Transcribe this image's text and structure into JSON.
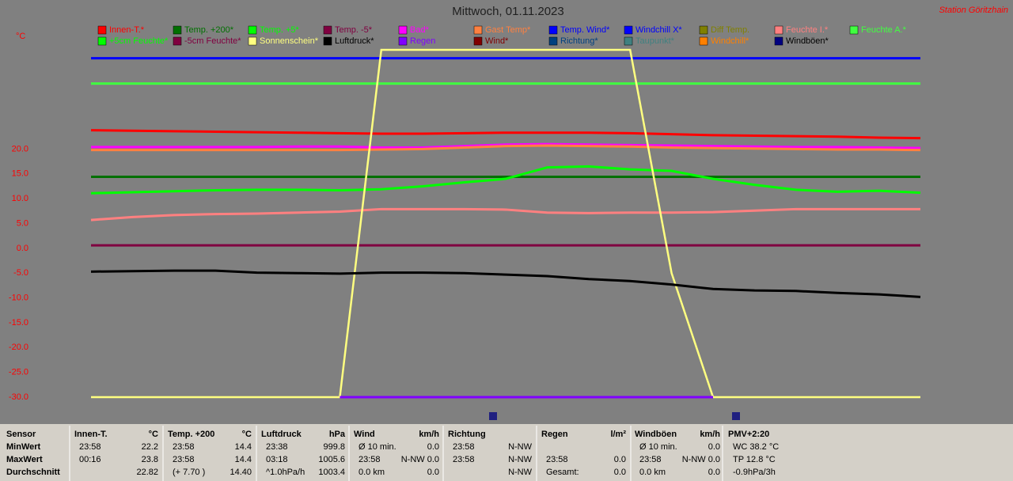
{
  "station": "Station Göritzhain",
  "chart_data": {
    "type": "line",
    "title": "Mittwoch, 01.11.2023",
    "y_unit": "°C",
    "ylim": [
      -30,
      40
    ],
    "yticks": [
      {
        "value": 20,
        "label": "20.0"
      },
      {
        "value": 15,
        "label": "15.0"
      },
      {
        "value": 10,
        "label": "10.0"
      },
      {
        "value": 5,
        "label": "5.0"
      },
      {
        "value": 0,
        "label": "0.0"
      },
      {
        "value": -5,
        "label": "-5.0"
      },
      {
        "value": -10,
        "label": "-10.0"
      },
      {
        "value": -15,
        "label": "-15.0"
      },
      {
        "value": -20,
        "label": "-20.0"
      },
      {
        "value": -25,
        "label": "-25.0"
      },
      {
        "value": -30,
        "label": "-30.0"
      }
    ],
    "categories": [
      null,
      null,
      null,
      null,
      null,
      null,
      null,
      null,
      null,
      null,
      null,
      null,
      null,
      null,
      null,
      null,
      null,
      null,
      null,
      null,
      null
    ],
    "series": [
      {
        "name": "Innen-T.*",
        "color": "#ff0000",
        "values": [
          23.8,
          23.7,
          23.6,
          23.5,
          23.4,
          23.3,
          23.2,
          23.1,
          23.1,
          23.2,
          23.3,
          23.3,
          23.3,
          23.2,
          23.0,
          22.8,
          22.7,
          22.6,
          22.5,
          22.3,
          22.2
        ]
      },
      {
        "name": "Temp. +200*",
        "color": "#007000",
        "values": [
          14.4,
          14.4,
          14.4,
          14.4,
          14.4,
          14.4,
          14.4,
          14.4,
          14.4,
          14.4,
          14.4,
          14.4,
          14.4,
          14.4,
          14.4,
          14.4,
          14.4,
          14.4,
          14.4,
          14.4,
          14.4
        ]
      },
      {
        "name": "Temp. +5*",
        "color": "#00ff00",
        "values": [
          11.1,
          11.3,
          11.5,
          11.7,
          11.8,
          11.8,
          11.7,
          11.9,
          12.5,
          13.3,
          14.0,
          16.3,
          16.5,
          15.9,
          15.6,
          14.0,
          12.8,
          11.8,
          11.4,
          11.6,
          11.2
        ]
      },
      {
        "name": "Temp. -5*",
        "color": "#800040",
        "values": [
          0.6,
          0.6,
          0.6,
          0.6,
          0.6,
          0.6,
          0.6,
          0.6,
          0.6,
          0.6,
          0.6,
          0.6,
          0.6,
          0.6,
          0.6,
          0.6,
          0.6,
          0.6,
          0.6,
          0.6,
          0.6
        ]
      },
      {
        "name": "Bad*",
        "color": "#ff00ff",
        "values": [
          20.4,
          20.4,
          20.4,
          20.4,
          20.4,
          20.5,
          20.5,
          20.3,
          20.3,
          20.6,
          20.9,
          21.0,
          20.9,
          20.8,
          20.7,
          20.6,
          20.5,
          20.4,
          20.4,
          20.3,
          20.2
        ]
      },
      {
        "name": "Gast Temp*",
        "color": "#ff8040",
        "values": [
          19.8,
          19.8,
          19.8,
          19.8,
          19.8,
          19.8,
          19.8,
          19.9,
          20.0,
          20.3,
          20.6,
          20.7,
          20.6,
          20.5,
          20.3,
          20.2,
          20.1,
          20.0,
          19.9,
          19.9,
          19.8
        ]
      },
      {
        "name": "Temp. Wind*",
        "color": "#0000ff",
        "values": [
          38.3,
          38.3,
          38.3,
          38.3,
          38.3,
          38.3,
          38.3,
          38.3,
          38.3,
          38.3,
          38.3,
          38.3,
          38.3,
          38.3,
          38.3,
          38.3,
          38.3,
          38.3,
          38.3,
          38.3,
          38.3
        ]
      },
      {
        "name": "Windchill X*",
        "color": "#0000ff",
        "values": [
          null,
          null,
          null,
          null,
          null,
          null,
          null,
          null,
          null,
          null,
          null,
          null,
          null,
          null,
          null,
          null,
          null,
          null,
          null,
          null,
          null
        ]
      },
      {
        "name": "Diff Temp.",
        "color": "#808000",
        "values": [
          null,
          null,
          null,
          null,
          null,
          null,
          null,
          null,
          null,
          null,
          null,
          null,
          null,
          null,
          null,
          null,
          null,
          null,
          null,
          null,
          null
        ]
      },
      {
        "name": "Feuchte I.*",
        "color": "#ff8080",
        "values": [
          5.7,
          6.3,
          6.7,
          6.9,
          7.0,
          7.2,
          7.4,
          7.9,
          7.9,
          7.9,
          7.8,
          7.2,
          7.1,
          7.2,
          7.2,
          7.3,
          7.6,
          7.9,
          7.9,
          7.9,
          7.9
        ]
      },
      {
        "name": "Feuchte A.*",
        "color": "#40ff40",
        "values": [
          33.2,
          33.2,
          33.2,
          33.2,
          33.2,
          33.2,
          33.2,
          33.2,
          33.2,
          33.2,
          33.2,
          33.2,
          33.2,
          33.2,
          33.2,
          33.2,
          33.2,
          33.2,
          33.2,
          33.2,
          33.2
        ]
      },
      {
        "name": "+5cm Feuchte*",
        "color": "#00ff00",
        "values": [
          null,
          null,
          null,
          null,
          null,
          null,
          null,
          null,
          null,
          null,
          null,
          null,
          null,
          null,
          null,
          null,
          null,
          null,
          null,
          null,
          null
        ]
      },
      {
        "name": "-5cm Feuchte*",
        "color": "#800040",
        "values": [
          null,
          null,
          null,
          null,
          null,
          null,
          null,
          null,
          null,
          null,
          null,
          null,
          null,
          null,
          null,
          null,
          null,
          null,
          null,
          null,
          null
        ]
      },
      {
        "name": "Sonnenschein*",
        "color": "#ffff80",
        "values": [
          -30,
          -30,
          -30,
          -30,
          -30,
          -30,
          -30,
          40,
          40,
          40,
          40,
          40,
          40,
          40,
          -5,
          -30,
          -30,
          -30,
          -30,
          -30,
          -30
        ]
      },
      {
        "name": "Luftdruck*",
        "color": "#000000",
        "values": [
          -4.7,
          -4.6,
          -4.5,
          -4.5,
          -4.9,
          -5.0,
          -5.1,
          -4.9,
          -4.9,
          -5.0,
          -5.3,
          -5.6,
          -6.2,
          -6.6,
          -7.3,
          -8.2,
          -8.5,
          -8.6,
          -9.0,
          -9.3,
          -9.8
        ]
      },
      {
        "name": "Regen",
        "color": "#8000ff",
        "values": [
          null,
          null,
          null,
          null,
          null,
          null,
          -30,
          -30,
          -30,
          -30,
          -30,
          -30,
          -30,
          -30,
          -30,
          -30,
          null,
          null,
          null,
          null,
          null
        ]
      },
      {
        "name": "Wind*",
        "color": "#800000",
        "values": [
          null,
          null,
          null,
          null,
          null,
          null,
          null,
          null,
          null,
          null,
          null,
          null,
          null,
          null,
          null,
          null,
          null,
          null,
          null,
          null,
          null
        ]
      },
      {
        "name": "Richtung*",
        "color": "#004080",
        "values": [
          null,
          null,
          null,
          null,
          null,
          null,
          null,
          null,
          null,
          null,
          null,
          null,
          null,
          null,
          null,
          null,
          null,
          null,
          null,
          null,
          null
        ]
      },
      {
        "name": "Taupunkt*",
        "color": "#408080",
        "values": [
          null,
          null,
          null,
          null,
          null,
          null,
          null,
          null,
          null,
          null,
          null,
          null,
          null,
          null,
          null,
          null,
          null,
          null,
          null,
          null,
          null
        ]
      },
      {
        "name": "Windchill*",
        "color": "#ff8000",
        "values": [
          null,
          null,
          null,
          null,
          null,
          null,
          null,
          null,
          null,
          null,
          null,
          null,
          null,
          null,
          null,
          null,
          null,
          null,
          null,
          null,
          null
        ]
      },
      {
        "name": "Windböen*",
        "color": "#000080",
        "values": [
          null,
          null,
          null,
          null,
          null,
          null,
          null,
          null,
          null,
          null,
          null,
          null,
          null,
          null,
          null,
          null,
          null,
          null,
          null,
          null,
          null
        ]
      }
    ]
  },
  "table": {
    "groups": [
      {
        "header": [
          "Sensor"
        ],
        "rows": [
          {
            "l": "MinWert"
          },
          {
            "l": "MaxWert"
          },
          {
            "l": "Durchschnitt"
          }
        ]
      },
      {
        "header": [
          "Innen-T.",
          "°C"
        ],
        "rows": [
          {
            "l": "23:58",
            "r": "22.2"
          },
          {
            "l": "00:16",
            "r": "23.8"
          },
          {
            "r": "22.82"
          }
        ]
      },
      {
        "header": [
          "Temp. +200",
          "°C"
        ],
        "rows": [
          {
            "l": "23:58",
            "r": "14.4"
          },
          {
            "l": "23:58",
            "r": "14.4"
          },
          {
            "l": "(+ 7.70 )",
            "r": "14.40"
          }
        ]
      },
      {
        "header": [
          "Luftdruck",
          "hPa"
        ],
        "rows": [
          {
            "l": "23:38",
            "r": "999.8"
          },
          {
            "l": "03:18",
            "r": "1005.6"
          },
          {
            "l": "^1.0hPa/h",
            "r": "1003.4"
          }
        ]
      },
      {
        "header": [
          "Wind",
          "km/h"
        ],
        "rows": [
          {
            "l": "Ø 10 min.",
            "r": "0.0"
          },
          {
            "l": "23:58",
            "r": "N-NW 0.0"
          },
          {
            "l": "0.0 km",
            "r": "0.0"
          }
        ]
      },
      {
        "header": [
          "Richtung"
        ],
        "rows": [
          {
            "l": "23:58",
            "r": "N-NW"
          },
          {
            "l": "23:58",
            "r": "N-NW"
          },
          {
            "r": "N-NW"
          }
        ]
      },
      {
        "header": [
          "Regen",
          "l/m²"
        ],
        "rows": [
          {},
          {
            "l": "23:58",
            "r": "0.0"
          },
          {
            "l": "Gesamt:",
            "r": "0.0"
          }
        ]
      },
      {
        "header": [
          "Windböen",
          "km/h"
        ],
        "rows": [
          {
            "l": "Ø 10 min.",
            "r": "0.0"
          },
          {
            "l": "23:58",
            "r": "N-NW 0.0"
          },
          {
            "l": "0.0 km",
            "r": "0.0"
          }
        ]
      },
      {
        "header": [
          "PMV+2:20"
        ],
        "rows": [
          {
            "l": "WC 38.2 °C"
          },
          {
            "l": "TP 12.8 °C"
          },
          {
            "l": "-0.9hPa/3h"
          }
        ]
      }
    ]
  }
}
